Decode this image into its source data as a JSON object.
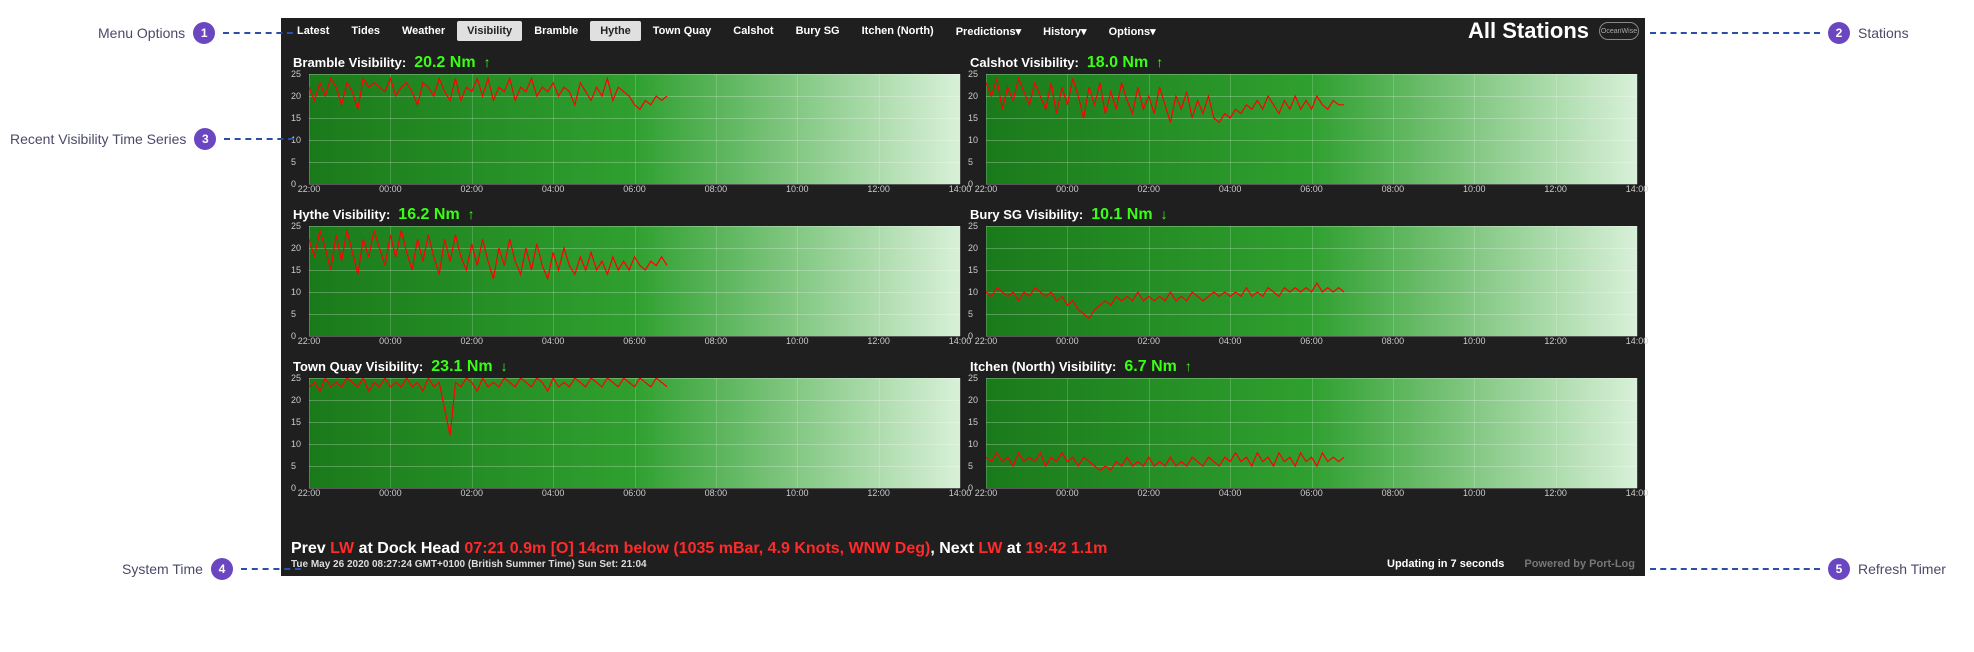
{
  "callouts": {
    "c1": {
      "num": "1",
      "label": "Menu Options"
    },
    "c2": {
      "num": "2",
      "label": "Stations"
    },
    "c3": {
      "num": "3",
      "label": "Recent Visibility Time Series"
    },
    "c4": {
      "num": "4",
      "label": "System Time"
    },
    "c5": {
      "num": "5",
      "label": "Refresh Timer"
    }
  },
  "menu": {
    "items": [
      "Latest",
      "Tides",
      "Weather",
      "Visibility",
      "Bramble",
      "Hythe",
      "Town Quay",
      "Calshot",
      "Bury SG",
      "Itchen (North)",
      "Predictions▾",
      "History▾",
      "Options▾"
    ],
    "active": [
      "Visibility",
      "Hythe"
    ],
    "title": "All Stations",
    "logo": "OceanWise"
  },
  "chart_common": {
    "ymax": 25,
    "yticks": [
      0,
      5,
      10,
      15,
      20,
      25
    ],
    "xticks": [
      "22:00",
      "00:00",
      "02:00",
      "04:00",
      "06:00",
      "08:00",
      "10:00",
      "12:00",
      "14:00"
    ],
    "data_xrange": [
      0,
      0.55
    ],
    "grid_color": "rgba(255,255,255,0.25)",
    "bg_gradient": [
      "#1a7a1a",
      "#2fa02f",
      "#d8f0d8"
    ],
    "line_color": "#ff0000",
    "line_width": 1.2,
    "tick_color": "#cccccc",
    "tick_fontsize": 9
  },
  "panels": [
    {
      "label": "Bramble Visibility:",
      "value": "20.2 Nm",
      "arrow": "↑",
      "series": [
        22,
        19,
        23,
        20,
        24,
        22,
        18,
        23,
        21,
        17,
        24,
        22,
        23,
        22,
        21,
        24,
        20,
        22,
        23,
        21,
        18,
        23,
        22,
        20,
        24,
        21,
        19,
        24,
        19,
        22,
        21,
        24,
        20,
        24,
        19,
        22,
        21,
        24,
        19,
        22,
        21,
        24,
        20,
        22,
        21,
        23,
        20,
        22,
        21,
        18,
        23,
        21,
        19,
        22,
        20,
        24,
        19,
        22,
        21,
        20,
        18,
        17,
        19,
        18,
        20,
        19,
        20
      ]
    },
    {
      "label": "Calshot Visibility:",
      "value": "18.0 Nm",
      "arrow": "↑",
      "series": [
        23,
        20,
        24,
        17,
        22,
        19,
        24,
        21,
        18,
        23,
        20,
        17,
        23,
        16,
        22,
        18,
        24,
        20,
        15,
        22,
        18,
        23,
        16,
        21,
        17,
        23,
        19,
        16,
        22,
        17,
        20,
        16,
        22,
        18,
        14,
        20,
        17,
        21,
        15,
        19,
        16,
        20,
        15,
        14,
        16,
        15,
        17,
        16,
        18,
        17,
        19,
        17,
        20,
        18,
        16,
        19,
        17,
        20,
        17,
        19,
        17,
        20,
        18,
        17,
        19,
        18,
        18
      ]
    },
    {
      "label": "Hythe Visibility:",
      "value": "16.2 Nm",
      "arrow": "↑",
      "series": [
        22,
        18,
        24,
        20,
        15,
        23,
        17,
        24,
        19,
        14,
        22,
        18,
        24,
        20,
        16,
        23,
        18,
        24,
        19,
        15,
        22,
        17,
        23,
        18,
        14,
        22,
        17,
        23,
        18,
        15,
        21,
        16,
        22,
        17,
        13,
        20,
        16,
        22,
        17,
        14,
        20,
        15,
        21,
        16,
        13,
        19,
        15,
        20,
        16,
        14,
        18,
        15,
        19,
        15,
        17,
        14,
        18,
        15,
        17,
        15,
        18,
        16,
        15,
        17,
        16,
        18,
        16
      ]
    },
    {
      "label": "Bury SG Visibility:",
      "value": "10.1 Nm",
      "arrow": "↓",
      "series": [
        10,
        9,
        11,
        10,
        9,
        10,
        8,
        10,
        9,
        11,
        10,
        9,
        10,
        8,
        9,
        7,
        8,
        6,
        5,
        4,
        6,
        7,
        8,
        7,
        9,
        8,
        9,
        8,
        10,
        8,
        9,
        8,
        9,
        8,
        10,
        8,
        9,
        8,
        10,
        9,
        8,
        9,
        10,
        9,
        10,
        9,
        10,
        9,
        11,
        9,
        10,
        9,
        11,
        10,
        9,
        11,
        10,
        11,
        10,
        11,
        10,
        12,
        10,
        11,
        10,
        11,
        10
      ]
    },
    {
      "label": "Town Quay Visibility:",
      "value": "23.1 Nm",
      "arrow": "↓",
      "series": [
        23,
        24,
        22,
        25,
        23,
        24,
        23,
        25,
        24,
        23,
        25,
        22,
        24,
        23,
        25,
        23,
        24,
        23,
        25,
        23,
        24,
        22,
        25,
        23,
        24,
        18,
        12,
        24,
        23,
        25,
        24,
        22,
        25,
        23,
        24,
        23,
        25,
        24,
        23,
        25,
        24,
        23,
        25,
        24,
        22,
        25,
        23,
        24,
        23,
        25,
        24,
        23,
        25,
        24,
        23,
        25,
        24,
        23,
        25,
        24,
        23,
        25,
        24,
        23,
        25,
        24,
        23
      ]
    },
    {
      "label": "Itchen (North) Visibility:",
      "value": "6.7 Nm",
      "arrow": "↑",
      "series": [
        7,
        6,
        8,
        6,
        7,
        5,
        8,
        6,
        7,
        6,
        8,
        5,
        7,
        6,
        8,
        6,
        7,
        5,
        7,
        6,
        5,
        4,
        5,
        4,
        6,
        5,
        7,
        5,
        6,
        5,
        7,
        5,
        6,
        5,
        7,
        5,
        6,
        5,
        7,
        6,
        5,
        7,
        6,
        5,
        7,
        6,
        8,
        6,
        7,
        5,
        8,
        6,
        7,
        5,
        8,
        6,
        7,
        5,
        8,
        6,
        7,
        5,
        8,
        6,
        7,
        6,
        7
      ]
    }
  ],
  "footer": {
    "prev": "Prev ",
    "lw1": "LW",
    "at1": " at Dock Head ",
    "red1": "07:21 0.9m [O] 14cm below (1035 mBar, 4.9 Knots, WNW Deg)",
    "next": ", Next ",
    "lw2": "LW",
    "at2": " at ",
    "red2": "19:42 1.1m",
    "systime": "Tue May 26 2020 08:27:24 GMT+0100 (British Summer Time) Sun Set: 21:04",
    "updating": "Updating in 7 seconds",
    "powered": "Powered by Port-Log"
  }
}
